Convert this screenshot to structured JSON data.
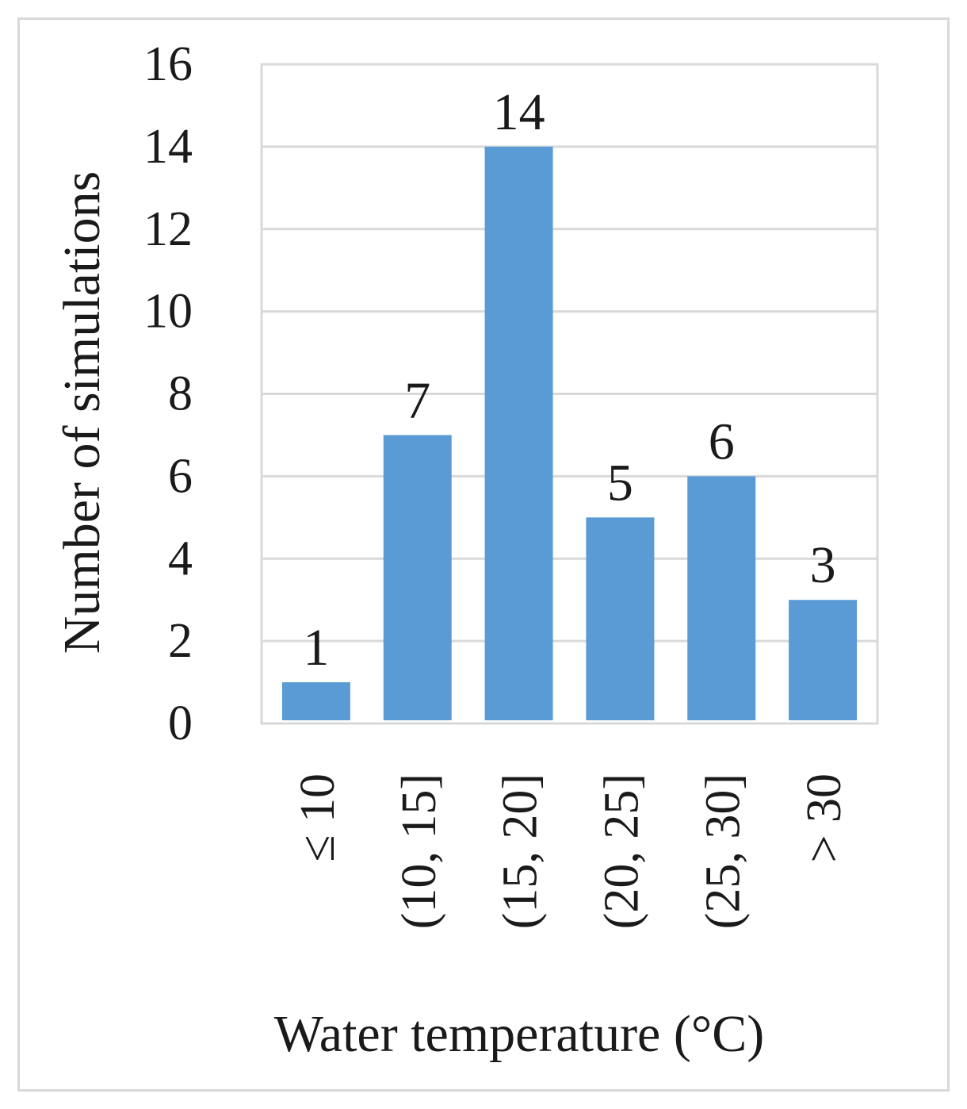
{
  "chart_data": {
    "type": "bar",
    "categories": [
      "≤ 10",
      "(10, 15]",
      "(15, 20]",
      "(20, 25]",
      "(25, 30]",
      "> 30"
    ],
    "values": [
      1,
      7,
      14,
      5,
      6,
      3
    ],
    "data_labels": [
      "1",
      "7",
      "14",
      "5",
      "6",
      "3"
    ],
    "xlabel": "Water temperature (°C)",
    "ylabel": "Number of simulations",
    "ylim": [
      0,
      16
    ],
    "yticks": [
      0,
      2,
      4,
      6,
      8,
      10,
      12,
      14,
      16
    ],
    "grid": true,
    "legend": "none",
    "bar_color": "#5b9bd5",
    "grid_color": "#d9d9d9"
  }
}
